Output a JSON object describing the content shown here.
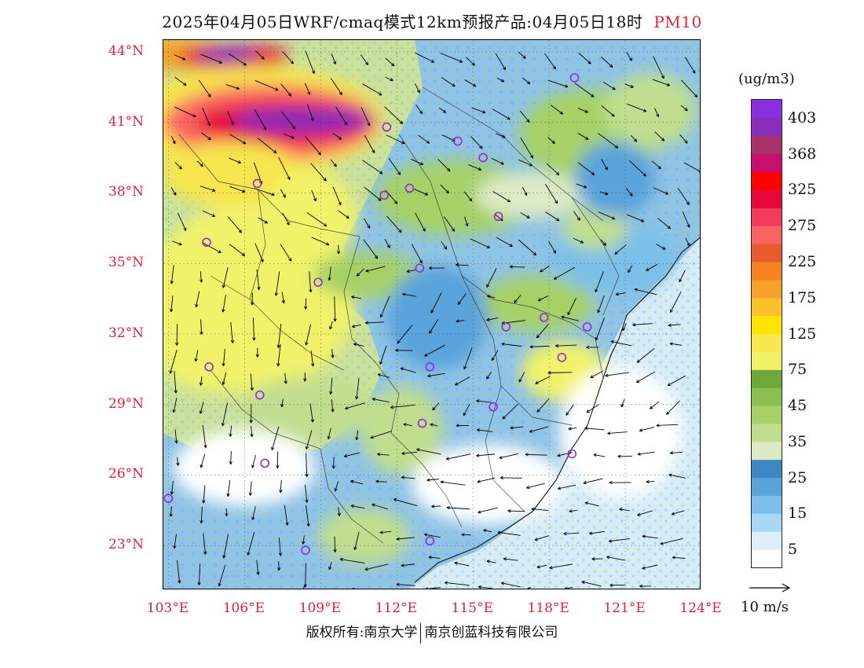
{
  "header": {
    "title": "2025年04月05日WRF/cmaq模式12km预报产品:04月05日18时",
    "pollutant": "PM10"
  },
  "axes": {
    "latitudes": [
      {
        "label": "44°N",
        "value": 44
      },
      {
        "label": "41°N",
        "value": 41
      },
      {
        "label": "38°N",
        "value": 38
      },
      {
        "label": "35°N",
        "value": 35
      },
      {
        "label": "32°N",
        "value": 32
      },
      {
        "label": "29°N",
        "value": 29
      },
      {
        "label": "26°N",
        "value": 26
      },
      {
        "label": "23°N",
        "value": 23
      }
    ],
    "longitudes": [
      {
        "label": "103°E",
        "value": 103
      },
      {
        "label": "106°E",
        "value": 106
      },
      {
        "label": "109°E",
        "value": 109
      },
      {
        "label": "112°E",
        "value": 112
      },
      {
        "label": "115°E",
        "value": 115
      },
      {
        "label": "118°E",
        "value": 118
      },
      {
        "label": "121°E",
        "value": 121
      },
      {
        "label": "124°E",
        "value": 124
      }
    ],
    "lon_range": [
      102.8,
      124
    ],
    "lat_range": [
      21.1,
      44.5
    ]
  },
  "legend": {
    "unit": "(ug/m3)",
    "colors_bottom_to_top": [
      "#ffffff",
      "#dceffa",
      "#a8d8f5",
      "#7cbfe9",
      "#5aa3db",
      "#3f86c4",
      "#dcebc4",
      "#c1de8e",
      "#a6d166",
      "#8cc04e",
      "#6ea838",
      "#f1f26a",
      "#f7e64e",
      "#ffe400",
      "#fbc02a",
      "#f7a12a",
      "#f58220",
      "#e65a2c",
      "#fb6362",
      "#f23a5a",
      "#e8063a",
      "#ff0000",
      "#c90e6e",
      "#a8326a",
      "#8a2fb9",
      "#8a2fe0"
    ],
    "labels": [
      {
        "text": "5",
        "index": 1
      },
      {
        "text": "15",
        "index": 3
      },
      {
        "text": "25",
        "index": 5
      },
      {
        "text": "35",
        "index": 7
      },
      {
        "text": "45",
        "index": 9
      },
      {
        "text": "75",
        "index": 11
      },
      {
        "text": "125",
        "index": 13
      },
      {
        "text": "175",
        "index": 15
      },
      {
        "text": "225",
        "index": 17
      },
      {
        "text": "275",
        "index": 19
      },
      {
        "text": "325",
        "index": 21
      },
      {
        "text": "368",
        "index": 23
      },
      {
        "text": "403",
        "index": 25
      }
    ]
  },
  "wind_key": {
    "label": "10 m/s"
  },
  "footer": {
    "left": "版权所有:南京大学",
    "right": "南京创蓝科技有限公司"
  },
  "stations": [
    {
      "lon": 119.0,
      "lat": 42.9
    },
    {
      "lon": 111.6,
      "lat": 40.8
    },
    {
      "lon": 114.4,
      "lat": 40.2
    },
    {
      "lon": 115.4,
      "lat": 39.5
    },
    {
      "lon": 106.5,
      "lat": 38.4
    },
    {
      "lon": 112.5,
      "lat": 38.2
    },
    {
      "lon": 111.5,
      "lat": 37.9
    },
    {
      "lon": 116.0,
      "lat": 37.0
    },
    {
      "lon": 104.5,
      "lat": 35.9
    },
    {
      "lon": 112.9,
      "lat": 34.8
    },
    {
      "lon": 108.9,
      "lat": 34.2
    },
    {
      "lon": 117.8,
      "lat": 32.7
    },
    {
      "lon": 116.3,
      "lat": 32.3
    },
    {
      "lon": 119.5,
      "lat": 32.3
    },
    {
      "lon": 118.5,
      "lat": 31.0
    },
    {
      "lon": 104.6,
      "lat": 30.6
    },
    {
      "lon": 113.3,
      "lat": 30.6
    },
    {
      "lon": 106.6,
      "lat": 29.4
    },
    {
      "lon": 115.8,
      "lat": 28.9
    },
    {
      "lon": 113.0,
      "lat": 28.2
    },
    {
      "lon": 106.8,
      "lat": 26.5
    },
    {
      "lon": 118.9,
      "lat": 26.9
    },
    {
      "lon": 103.0,
      "lat": 25.0
    },
    {
      "lon": 108.4,
      "lat": 22.8
    },
    {
      "lon": 113.3,
      "lat": 23.2
    }
  ],
  "concentration_zones": [
    {
      "lon": 103.5,
      "lat": 43.9,
      "rx": 2.6,
      "ry": 0.7,
      "level": "#f5a32a"
    },
    {
      "lon": 105.6,
      "lat": 43.8,
      "rx": 2.2,
      "ry": 0.5,
      "level": "#e8063a"
    },
    {
      "lon": 105.3,
      "lat": 43.9,
      "rx": 1.2,
      "ry": 0.35,
      "level": "#8a2fb9"
    },
    {
      "lon": 106.5,
      "lat": 41.1,
      "rx": 5.0,
      "ry": 2.3,
      "level": "#f7e64e"
    },
    {
      "lon": 107.0,
      "lat": 41.0,
      "rx": 4.2,
      "ry": 1.6,
      "level": "#fb6362"
    },
    {
      "lon": 107.6,
      "lat": 41.0,
      "rx": 3.5,
      "ry": 0.9,
      "level": "#e8063a"
    },
    {
      "lon": 108.3,
      "lat": 41.1,
      "rx": 2.8,
      "ry": 0.55,
      "level": "#8a2fb9"
    },
    {
      "lon": 105.5,
      "lat": 38.8,
      "rx": 2.8,
      "ry": 1.4,
      "level": "#f7e64e"
    },
    {
      "lon": 106.2,
      "lat": 33.5,
      "rx": 4.2,
      "ry": 4.0,
      "level": "#f1f26a"
    },
    {
      "lon": 104.9,
      "lat": 31.5,
      "rx": 2.4,
      "ry": 2.0,
      "level": "#f1f26a"
    },
    {
      "lon": 108.6,
      "lat": 37.0,
      "rx": 1.8,
      "ry": 2.0,
      "level": "#f1f26a"
    },
    {
      "lon": 110.9,
      "lat": 34.5,
      "rx": 2.2,
      "ry": 1.0,
      "level": "#a6d166"
    },
    {
      "lon": 114.3,
      "lat": 37.8,
      "rx": 3.2,
      "ry": 1.6,
      "level": "#a6d166"
    },
    {
      "lon": 112.2,
      "lat": 27.9,
      "rx": 1.6,
      "ry": 1.9,
      "level": "#c1de8e"
    },
    {
      "lon": 117.5,
      "lat": 33.3,
      "rx": 2.3,
      "ry": 1.2,
      "level": "#a6d166"
    },
    {
      "lon": 119.6,
      "lat": 40.5,
      "rx": 2.8,
      "ry": 1.9,
      "level": "#a6d166"
    },
    {
      "lon": 122.0,
      "lat": 41.5,
      "rx": 1.8,
      "ry": 1.6,
      "level": "#c1de8e"
    },
    {
      "lon": 118.6,
      "lat": 30.4,
      "rx": 1.7,
      "ry": 1.3,
      "level": "#f1f26a"
    },
    {
      "lon": 108.5,
      "lat": 28.8,
      "rx": 2.6,
      "ry": 1.4,
      "level": "#c1de8e"
    },
    {
      "lon": 110.7,
      "lat": 23.4,
      "rx": 1.8,
      "ry": 1.2,
      "level": "#c1de8e"
    },
    {
      "lon": 117.3,
      "lat": 37.9,
      "rx": 2.2,
      "ry": 1.0,
      "level": "#dcebc4"
    },
    {
      "lon": 120.5,
      "lat": 35.3,
      "rx": 2.5,
      "ry": 1.6,
      "level": "#7cbfe9"
    },
    {
      "lon": 119.8,
      "lat": 36.5,
      "rx": 1.3,
      "ry": 0.9,
      "level": "#c1de8e"
    },
    {
      "lon": 115.6,
      "lat": 25.6,
      "rx": 3.0,
      "ry": 1.7,
      "level": "#ffffff"
    },
    {
      "lon": 106.0,
      "lat": 26.3,
      "rx": 2.8,
      "ry": 1.6,
      "level": "#ffffff"
    },
    {
      "lon": 120.8,
      "lat": 27.8,
      "rx": 2.4,
      "ry": 2.8,
      "level": "#ffffff"
    },
    {
      "lon": 113.6,
      "lat": 32.7,
      "rx": 2.0,
      "ry": 2.2,
      "level": "#5aa3db"
    },
    {
      "lon": 120.6,
      "lat": 38.6,
      "rx": 1.6,
      "ry": 1.6,
      "level": "#5aa3db"
    }
  ]
}
